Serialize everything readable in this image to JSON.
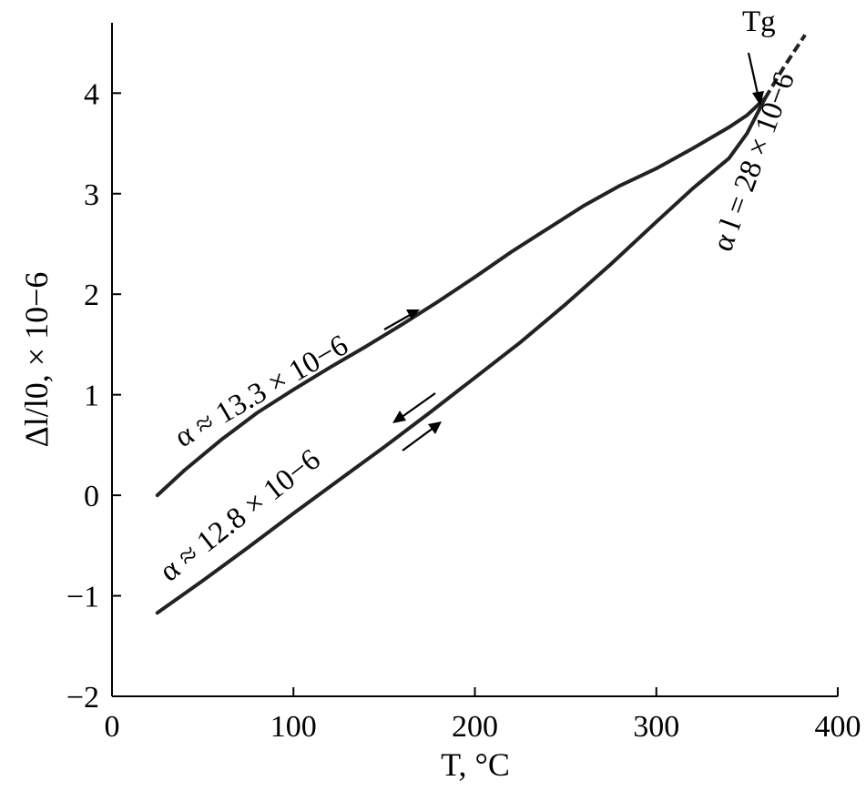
{
  "chart_data": {
    "type": "line",
    "xlabel": "T, °C",
    "ylabel": "Δl/l0, × 10−6",
    "xlim": [
      0,
      400
    ],
    "ylim": [
      -2,
      4.7
    ],
    "xticks": [
      0,
      100,
      200,
      300,
      400
    ],
    "yticks": [
      -2,
      -1,
      0,
      1,
      2,
      3,
      4
    ],
    "grid": false,
    "series": [
      {
        "x": [
          25,
          40,
          60,
          80,
          100,
          120,
          140,
          160,
          180,
          200,
          220,
          240,
          260,
          280,
          300,
          320,
          340,
          350,
          360
        ],
        "y": [
          0,
          0.25,
          0.55,
          0.82,
          1.05,
          1.27,
          1.48,
          1.7,
          1.93,
          2.17,
          2.42,
          2.65,
          2.88,
          3.08,
          3.25,
          3.45,
          3.66,
          3.78,
          3.95
        ]
      },
      {
        "x": [
          25,
          50,
          75,
          100,
          125,
          150,
          175,
          200,
          225,
          250,
          275,
          300,
          320,
          340,
          350,
          360
        ],
        "y": [
          -1.17,
          -0.85,
          -0.52,
          -0.18,
          0.15,
          0.48,
          0.82,
          1.17,
          1.52,
          1.9,
          2.3,
          2.72,
          3.05,
          3.35,
          3.6,
          3.95
        ]
      },
      {
        "x": [
          360,
          370,
          382
        ],
        "y": [
          3.95,
          4.25,
          4.58
        ],
        "dashed": true
      }
    ],
    "annotations": [
      {
        "text": "α ≈ 13.3 × 10−6"
      },
      {
        "text": "α ≈ 12.8 × 10−6"
      },
      {
        "text": "α l = 28 × 10−6"
      },
      {
        "text": "Tg"
      }
    ]
  }
}
